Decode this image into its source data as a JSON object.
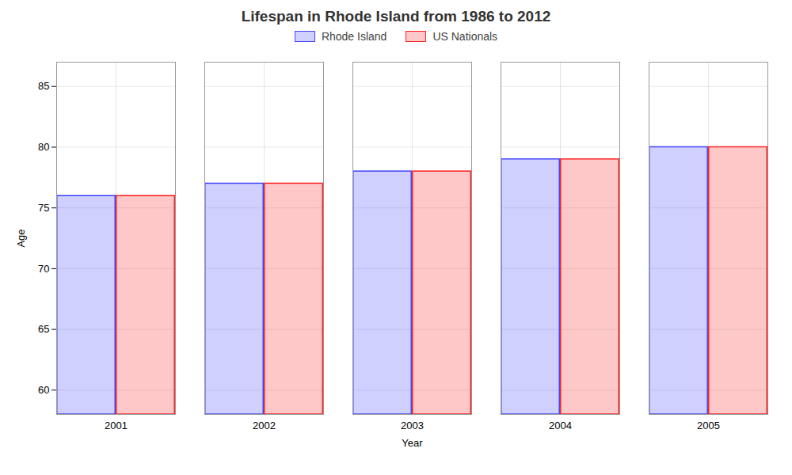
{
  "chart_data": {
    "type": "bar",
    "title": "Lifespan in Rhode Island from 1986 to 2012",
    "xlabel": "Year",
    "ylabel": "Age",
    "categories": [
      "2001",
      "2002",
      "2003",
      "2004",
      "2005"
    ],
    "series": [
      {
        "name": "Rhode Island",
        "color": "#4444ff",
        "values": [
          76,
          77,
          78,
          79,
          80
        ]
      },
      {
        "name": "US Nationals",
        "color": "#ff2222",
        "values": [
          76,
          77,
          78,
          79,
          80
        ]
      }
    ],
    "ylim": [
      58,
      87
    ],
    "yticks": [
      60,
      65,
      70,
      75,
      80,
      85
    ],
    "grid": true,
    "legend": "top"
  }
}
